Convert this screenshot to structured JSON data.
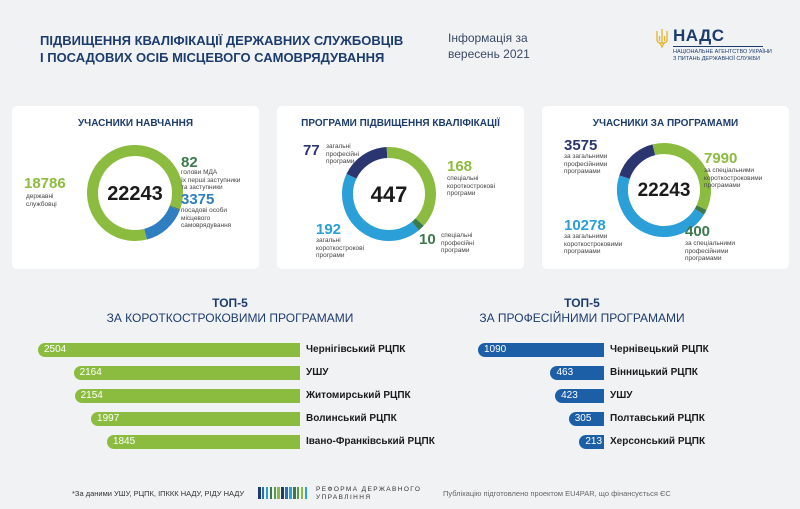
{
  "header": {
    "title_line1": "ПІДВИЩЕННЯ КВАЛІФІКАЦІЇ ДЕРЖАВНИХ СЛУЖБОВЦІВ",
    "title_line2": "І ПОСАДОВИХ ОСІБ МІСЦЕВОГО САМОВРЯДУВАННЯ",
    "info_line1": "Інформація за",
    "info_line2": "вересень 2021"
  },
  "logo": {
    "abbr": "НАДС",
    "full_line1": "НАЦІОНАЛЬНЕ АГЕНТСТВО УКРАЇНИ",
    "full_line2": "З ПИТАНЬ ДЕРЖАВНОЇ СЛУЖБИ",
    "icon": "trident-icon"
  },
  "colors": {
    "green": "#8cbc3f",
    "dark_green": "#3c7a4b",
    "blue": "#2f7ec0",
    "light_blue": "#2a9fd8",
    "navy": "#2b3570",
    "dark_blue_bar": "#1d5fa6"
  },
  "chart_data": [
    {
      "type": "pie",
      "title": "УЧАСНИКИ НАВЧАННЯ",
      "total": "22243",
      "series": [
        {
          "label_value": "18786",
          "value": 18786,
          "text": [
            "державні",
            "службовці"
          ],
          "color": "#8cbc3f"
        },
        {
          "label_value": "82",
          "value": 82,
          "text": [
            "голови МДА",
            "їх перші заступники",
            "та заступники"
          ],
          "color": "#3c7a4b"
        },
        {
          "label_value": "3375",
          "value": 3375,
          "text": [
            "посадові особи",
            "місцевого",
            "самоврядування"
          ],
          "color": "#2f7ec0"
        }
      ]
    },
    {
      "type": "pie",
      "title": "ПРОГРАМИ ПІДВИЩЕННЯ КВАЛІФІКАЦІЇ",
      "total": "447",
      "series": [
        {
          "label_value": "77",
          "value": 77,
          "text": [
            "загальні",
            "професійні",
            "програми"
          ],
          "color": "#2b3570"
        },
        {
          "label_value": "168",
          "value": 168,
          "text": [
            "спеціальні",
            "короткострокові",
            "програми"
          ],
          "color": "#8cbc3f"
        },
        {
          "label_value": "10",
          "value": 10,
          "text": [
            "спеціальні",
            "професійні",
            "програми"
          ],
          "color": "#3c7a4b"
        },
        {
          "label_value": "192",
          "value": 192,
          "text": [
            "загальні",
            "короткострокові",
            "програми"
          ],
          "color": "#2a9fd8"
        }
      ]
    },
    {
      "type": "pie",
      "title": "УЧАСНИКИ ЗА ПРОГРАМАМИ",
      "total": "22243",
      "series": [
        {
          "label_value": "3575",
          "value": 3575,
          "text": [
            "за загальними",
            "професійними",
            "програмами"
          ],
          "color": "#2b3570"
        },
        {
          "label_value": "7990",
          "value": 7990,
          "text": [
            "за спеціальними",
            "короткостроковими",
            "програмами"
          ],
          "color": "#8cbc3f"
        },
        {
          "label_value": "400",
          "value": 400,
          "text": [
            "за спеціальними",
            "професійними",
            "програмами"
          ],
          "color": "#3c7a4b"
        },
        {
          "label_value": "10278",
          "value": 10278,
          "text": [
            "за загальними",
            "короткостроковими",
            "програмами"
          ],
          "color": "#2a9fd8"
        }
      ]
    },
    {
      "type": "bar",
      "title_line1": "ТОП-5",
      "title_line2": "ЗА КОРОТКОСТРОКОВИМИ ПРОГРАМАМИ",
      "categories": [
        "Чернігівський РЦПК",
        "УШУ",
        "Житомирський РЦПК",
        "Волинський РЦПК",
        "Івано-Франківський РЦПК"
      ],
      "values": [
        2504,
        2164,
        2154,
        1997,
        1845
      ],
      "value_labels": [
        "2504",
        "2164",
        "2154",
        "1997",
        "1845"
      ],
      "color": "#8cbc3f"
    },
    {
      "type": "bar",
      "title_line1": "ТОП-5",
      "title_line2": "ЗА ПРОФЕСІЙНИМИ ПРОГРАМАМИ",
      "categories": [
        "Чернівецький РЦПК",
        "Вінницький РЦПК",
        "УШУ",
        "Полтавський РЦПК",
        "Херсонський РЦПК"
      ],
      "values": [
        1090,
        463,
        423,
        305,
        213
      ],
      "value_labels": [
        "1090",
        "463",
        "423",
        "305",
        "213"
      ],
      "color": "#1d5fa6"
    }
  ],
  "footer": {
    "note": "*За даними УШУ, РЦПК, ІПККК НАДУ, РІДУ НАДУ",
    "reform_line1": "РЕФОРМА ДЕРЖАВНОГО",
    "reform_line2": "УПРАВЛІННЯ",
    "publication": "Публікацію підготовлено проектом EU4PAR, що фінансується ЄС"
  }
}
